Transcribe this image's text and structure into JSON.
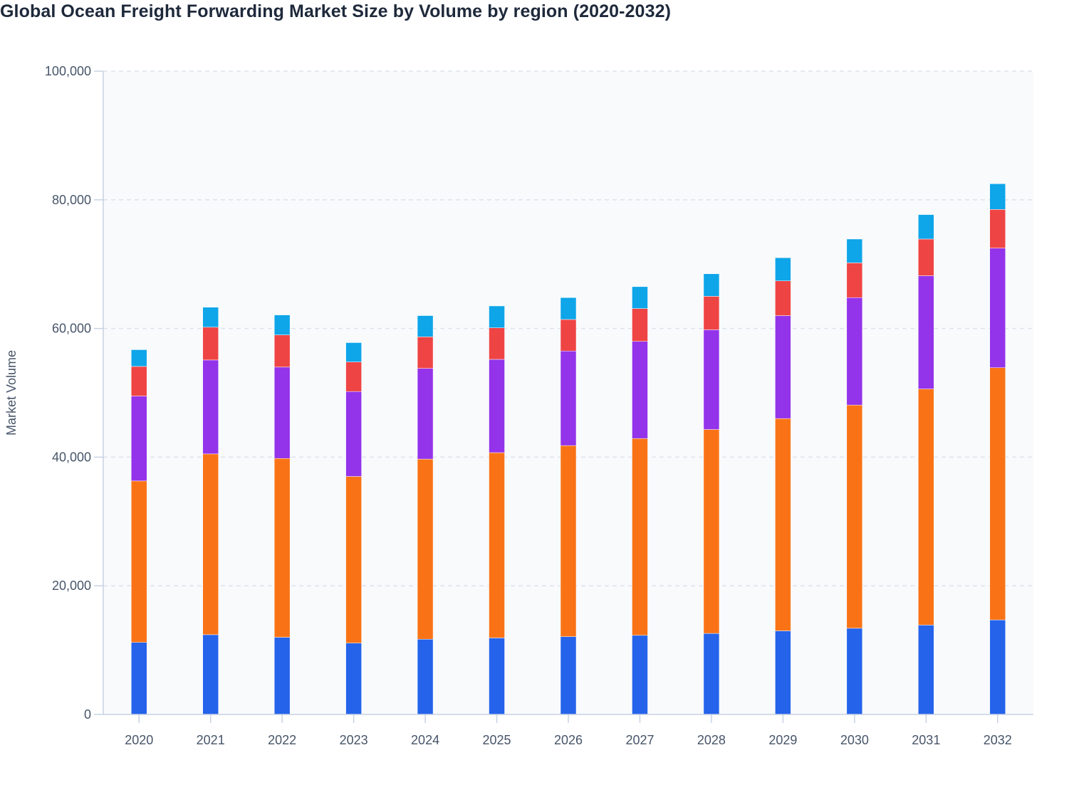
{
  "chart_data": {
    "type": "bar",
    "stacked": true,
    "title": "Global Ocean Freight Forwarding Market Size by Volume by region (2020-2032)",
    "xlabel": "",
    "ylabel": "Market Volume",
    "ylim": [
      0,
      100000
    ],
    "yticks": [
      "0",
      "20,000",
      "40,000",
      "60,000",
      "80,000",
      "100,000"
    ],
    "grid": true,
    "legend": "none",
    "categories": [
      "2020",
      "2021",
      "2022",
      "2023",
      "2024",
      "2025",
      "2026",
      "2027",
      "2028",
      "2029",
      "2030",
      "2031",
      "2032"
    ],
    "series": [
      {
        "color": "#2563eb",
        "values": [
          11200,
          12400,
          12000,
          11100,
          11700,
          11900,
          12100,
          12300,
          12600,
          13000,
          13400,
          13900,
          14700
        ]
      },
      {
        "color": "#f97316",
        "values": [
          25100,
          28100,
          27800,
          25900,
          28000,
          28800,
          29700,
          30600,
          31700,
          33000,
          34700,
          36700,
          39200
        ]
      },
      {
        "color": "#9333ea",
        "values": [
          13200,
          14600,
          14200,
          13200,
          14100,
          14500,
          14700,
          15100,
          15500,
          16000,
          16700,
          17600,
          18600
        ]
      },
      {
        "color": "#ef4444",
        "values": [
          4600,
          5100,
          5000,
          4600,
          4900,
          4900,
          4900,
          5100,
          5200,
          5400,
          5400,
          5700,
          6000
        ]
      },
      {
        "color": "#0ea5e9",
        "values": [
          2600,
          3100,
          3100,
          3000,
          3300,
          3400,
          3400,
          3400,
          3500,
          3600,
          3700,
          3800,
          4000
        ]
      }
    ]
  }
}
